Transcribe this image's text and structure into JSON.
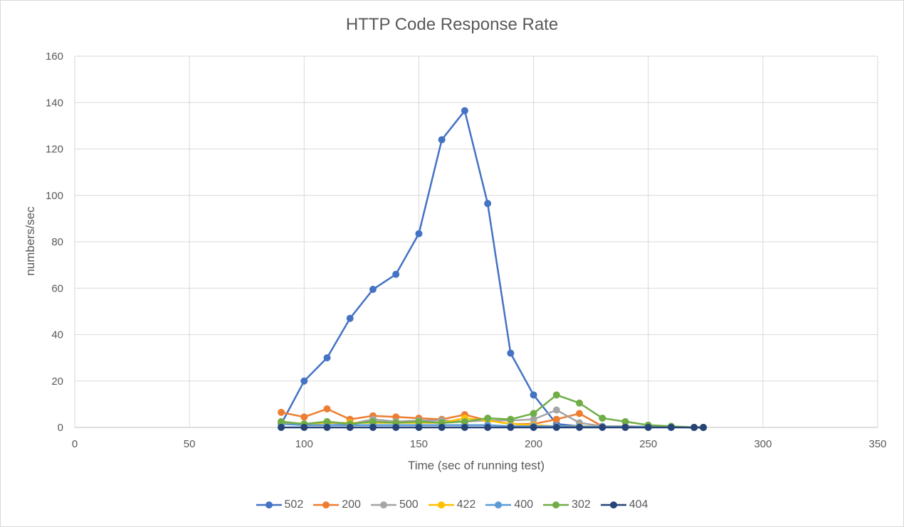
{
  "chart_data": {
    "type": "line",
    "title": "HTTP Code Response Rate",
    "xlabel": "Time (sec of running test)",
    "ylabel": "numbers/sec",
    "xlim": [
      0,
      350
    ],
    "ylim": [
      0,
      160
    ],
    "xticks": [
      0,
      50,
      100,
      150,
      200,
      250,
      300,
      350
    ],
    "yticks": [
      0,
      20,
      40,
      60,
      80,
      100,
      120,
      140,
      160
    ],
    "grid": true,
    "legend_position": "bottom",
    "series": [
      {
        "name": "502",
        "color": "#4472c4",
        "x": [
          90,
          100,
          110,
          120,
          130,
          140,
          150,
          160,
          170,
          180,
          190,
          200,
          210,
          220,
          230,
          240,
          250,
          260,
          270,
          274
        ],
        "y": [
          1.5,
          20,
          30,
          47,
          59.5,
          66,
          83.5,
          124,
          136.5,
          96.5,
          32,
          14,
          1.5,
          0.5,
          0.3,
          0.2,
          0.2,
          0.1,
          0,
          0
        ]
      },
      {
        "name": "200",
        "color": "#ed7d31",
        "x": [
          90,
          100,
          110,
          120,
          130,
          140,
          150,
          160,
          170,
          180,
          190,
          200,
          210,
          220,
          230,
          240,
          250,
          260,
          270,
          274
        ],
        "y": [
          6.5,
          4.5,
          8,
          3.5,
          5,
          4.5,
          4,
          3.5,
          5.5,
          3,
          1.5,
          1.5,
          3.5,
          6,
          0.5,
          0.5,
          0.3,
          0.3,
          0,
          0
        ]
      },
      {
        "name": "500",
        "color": "#a5a5a5",
        "x": [
          90,
          100,
          110,
          120,
          130,
          140,
          150,
          160,
          170,
          180,
          190,
          200,
          210,
          220,
          230,
          240,
          250,
          260,
          270,
          274
        ],
        "y": [
          2,
          1.5,
          2,
          1.5,
          3.5,
          2.5,
          3,
          3,
          2.5,
          3,
          3,
          3.5,
          7.5,
          2,
          0.5,
          0.5,
          0.3,
          0.3,
          0,
          0
        ]
      },
      {
        "name": "422",
        "color": "#ffc000",
        "x": [
          90,
          100,
          110,
          120,
          130,
          140,
          150,
          160,
          170,
          180,
          190,
          200,
          210,
          220,
          230,
          240,
          250,
          260,
          270,
          274
        ],
        "y": [
          2,
          1.5,
          2,
          2,
          2,
          2,
          2,
          2,
          4,
          3,
          1.5,
          1,
          0.5,
          0.5,
          0.3,
          0.2,
          0.2,
          0.2,
          0,
          0
        ]
      },
      {
        "name": "400",
        "color": "#5b9bd5",
        "x": [
          90,
          100,
          110,
          120,
          130,
          140,
          150,
          160,
          170,
          180,
          190,
          200,
          210,
          220,
          230,
          240,
          250,
          260,
          270,
          274
        ],
        "y": [
          1.5,
          1,
          1,
          1,
          1,
          1,
          1,
          1,
          1,
          1,
          0.5,
          0.5,
          0.5,
          0.3,
          0.3,
          0.2,
          0.2,
          0.1,
          0,
          0
        ]
      },
      {
        "name": "302",
        "color": "#70ad47",
        "x": [
          90,
          100,
          110,
          120,
          130,
          140,
          150,
          160,
          170,
          180,
          190,
          200,
          210,
          220,
          230,
          240,
          250,
          260,
          270,
          274
        ],
        "y": [
          2.5,
          1.5,
          2.5,
          1.5,
          2.5,
          2,
          2.5,
          2,
          2.5,
          4,
          3.5,
          6,
          14,
          10.5,
          4,
          2.5,
          1,
          0.5,
          0,
          0
        ]
      },
      {
        "name": "404",
        "color": "#264478",
        "x": [
          90,
          100,
          110,
          120,
          130,
          140,
          150,
          160,
          170,
          180,
          190,
          200,
          210,
          220,
          230,
          240,
          250,
          260,
          270,
          274
        ],
        "y": [
          0,
          0,
          0,
          0,
          0,
          0,
          0,
          0,
          0,
          0,
          0,
          0,
          0,
          0,
          0,
          0,
          0,
          0,
          0,
          0
        ]
      }
    ]
  }
}
